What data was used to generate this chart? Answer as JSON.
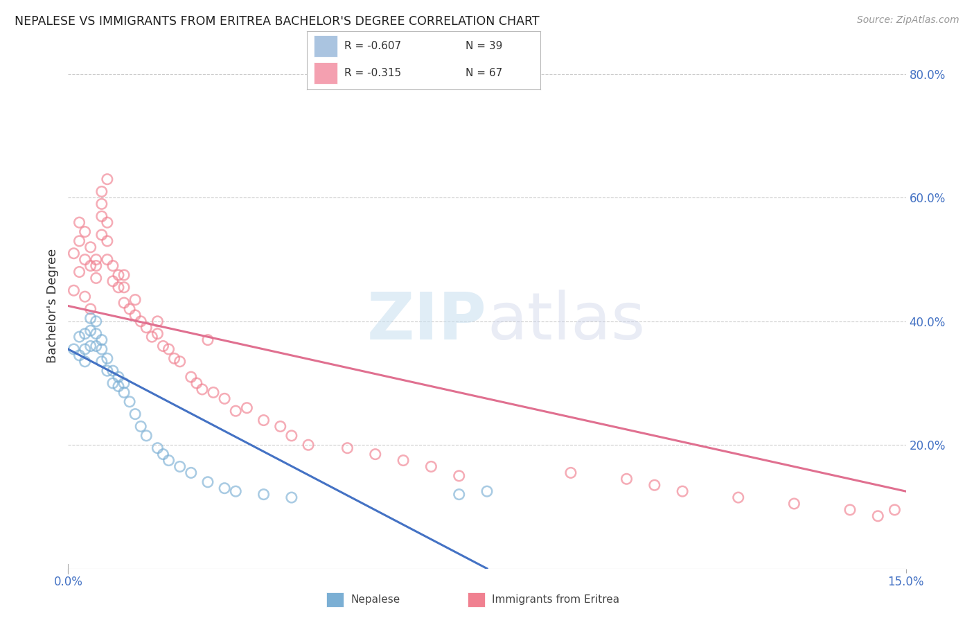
{
  "title": "NEPALESE VS IMMIGRANTS FROM ERITREA BACHELOR'S DEGREE CORRELATION CHART",
  "source": "Source: ZipAtlas.com",
  "ylabel": "Bachelor's Degree",
  "right_yticks": [
    "80.0%",
    "60.0%",
    "40.0%",
    "20.0%"
  ],
  "right_ytick_vals": [
    0.8,
    0.6,
    0.4,
    0.2
  ],
  "x_min": 0.0,
  "x_max": 0.15,
  "y_min": 0.0,
  "y_max": 0.85,
  "nepalese_color": "#7bafd4",
  "eritrea_color": "#f08090",
  "nepalese_scatter_x": [
    0.001,
    0.002,
    0.002,
    0.003,
    0.003,
    0.003,
    0.004,
    0.004,
    0.004,
    0.005,
    0.005,
    0.005,
    0.006,
    0.006,
    0.006,
    0.007,
    0.007,
    0.008,
    0.008,
    0.009,
    0.009,
    0.01,
    0.01,
    0.011,
    0.012,
    0.013,
    0.014,
    0.016,
    0.017,
    0.018,
    0.02,
    0.022,
    0.025,
    0.028,
    0.03,
    0.035,
    0.04,
    0.07,
    0.075
  ],
  "nepalese_scatter_y": [
    0.355,
    0.345,
    0.375,
    0.335,
    0.355,
    0.38,
    0.36,
    0.385,
    0.405,
    0.36,
    0.38,
    0.4,
    0.335,
    0.355,
    0.37,
    0.32,
    0.34,
    0.3,
    0.32,
    0.295,
    0.31,
    0.285,
    0.3,
    0.27,
    0.25,
    0.23,
    0.215,
    0.195,
    0.185,
    0.175,
    0.165,
    0.155,
    0.14,
    0.13,
    0.125,
    0.12,
    0.115,
    0.12,
    0.125
  ],
  "eritrea_scatter_x": [
    0.001,
    0.002,
    0.002,
    0.003,
    0.003,
    0.004,
    0.004,
    0.005,
    0.005,
    0.006,
    0.006,
    0.006,
    0.007,
    0.007,
    0.007,
    0.008,
    0.008,
    0.009,
    0.009,
    0.01,
    0.01,
    0.01,
    0.011,
    0.012,
    0.012,
    0.013,
    0.014,
    0.015,
    0.016,
    0.016,
    0.017,
    0.018,
    0.019,
    0.02,
    0.022,
    0.023,
    0.024,
    0.025,
    0.026,
    0.028,
    0.03,
    0.032,
    0.035,
    0.038,
    0.04,
    0.043,
    0.05,
    0.055,
    0.06,
    0.065,
    0.07,
    0.09,
    0.1,
    0.105,
    0.11,
    0.12,
    0.13,
    0.14,
    0.145,
    0.148,
    0.001,
    0.002,
    0.003,
    0.004,
    0.005,
    0.006,
    0.007
  ],
  "eritrea_scatter_y": [
    0.51,
    0.53,
    0.56,
    0.5,
    0.545,
    0.49,
    0.52,
    0.47,
    0.5,
    0.54,
    0.57,
    0.59,
    0.5,
    0.53,
    0.56,
    0.465,
    0.49,
    0.455,
    0.475,
    0.43,
    0.455,
    0.475,
    0.42,
    0.41,
    0.435,
    0.4,
    0.39,
    0.375,
    0.38,
    0.4,
    0.36,
    0.355,
    0.34,
    0.335,
    0.31,
    0.3,
    0.29,
    0.37,
    0.285,
    0.275,
    0.255,
    0.26,
    0.24,
    0.23,
    0.215,
    0.2,
    0.195,
    0.185,
    0.175,
    0.165,
    0.15,
    0.155,
    0.145,
    0.135,
    0.125,
    0.115,
    0.105,
    0.095,
    0.085,
    0.095,
    0.45,
    0.48,
    0.44,
    0.42,
    0.49,
    0.61,
    0.63
  ],
  "nepalese_trend_x": [
    0.0,
    0.075
  ],
  "nepalese_trend_y": [
    0.355,
    0.0
  ],
  "eritrea_trend_x": [
    0.0,
    0.15
  ],
  "eritrea_trend_y": [
    0.425,
    0.125
  ],
  "background_color": "#ffffff",
  "grid_color": "#cccccc",
  "text_color_blue": "#4472c4",
  "legend_box_color_blue": "#aac4e0",
  "legend_box_color_pink": "#f4a0b0",
  "legend_r1": "R = -0.607",
  "legend_n1": "N = 39",
  "legend_r2": "R = -0.315",
  "legend_n2": "N = 67",
  "watermark_zip": "ZIP",
  "watermark_atlas": "atlas"
}
